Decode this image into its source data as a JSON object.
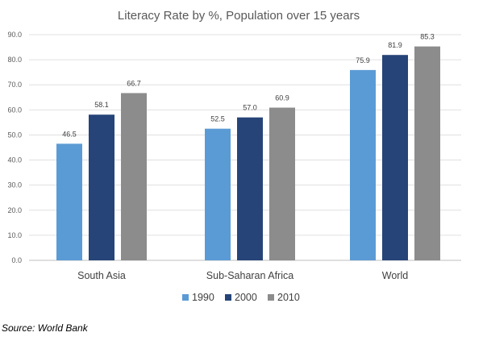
{
  "chart_data": {
    "type": "bar",
    "title": "Literacy Rate by %, Population over 15 years",
    "xlabel": "",
    "ylabel": "",
    "categories": [
      "South Asia",
      "Sub-Saharan Africa",
      "World"
    ],
    "series": [
      {
        "name": "1990",
        "color": "#5b9bd5",
        "values": [
          46.5,
          52.5,
          75.9
        ]
      },
      {
        "name": "2000",
        "color": "#264478",
        "values": [
          58.1,
          57.0,
          81.9
        ]
      },
      {
        "name": "2010",
        "color": "#8c8c8c",
        "values": [
          66.7,
          60.9,
          85.3
        ]
      }
    ],
    "value_labels": [
      [
        "46.5",
        "52.5",
        "75.9"
      ],
      [
        "58.1",
        "57.0",
        "81.9"
      ],
      [
        "66.7",
        "60.9",
        "85.3"
      ]
    ],
    "ylim": [
      0,
      90
    ],
    "yticks": [
      "0.0",
      "10.0",
      "20.0",
      "30.0",
      "40.0",
      "50.0",
      "60.0",
      "70.0",
      "80.0",
      "90.0"
    ],
    "grid": true,
    "legend_position": "bottom"
  },
  "source_note": "Source: World Bank"
}
